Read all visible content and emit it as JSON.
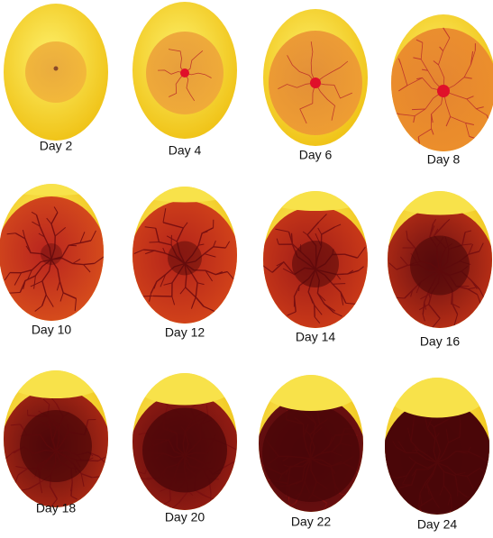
{
  "stages": [
    {
      "label": "Day 2"
    },
    {
      "label": "Day 4"
    },
    {
      "label": "Day 6"
    },
    {
      "label": "Day 8"
    },
    {
      "label": "Day 10"
    },
    {
      "label": "Day 12"
    },
    {
      "label": "Day 14"
    },
    {
      "label": "Day 16"
    },
    {
      "label": "Day 18"
    },
    {
      "label": "Day 20"
    },
    {
      "label": "Day 22"
    },
    {
      "label": "Day 24"
    }
  ]
}
